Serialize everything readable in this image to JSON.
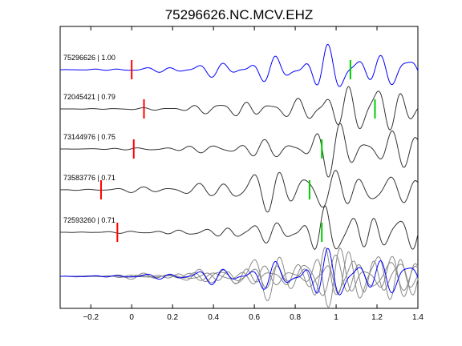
{
  "chart_data": {
    "type": "line",
    "title": "75296626.NC.MCV.EHZ",
    "xlabel": "",
    "ylabel": "",
    "xlim": [
      -0.35,
      1.4
    ],
    "xticks": [
      -0.2,
      0,
      0.2,
      0.4,
      0.6,
      0.8,
      1,
      1.2,
      1.4
    ],
    "xtick_labels": [
      "−0.2",
      "0",
      "0.2",
      "0.4",
      "0.6",
      "0.8",
      "1",
      "1.2",
      "1.4"
    ],
    "grid": false,
    "colors": {
      "reference": "#0000ff",
      "trace": "#333333",
      "stack_trace": "#888888",
      "p_pick": "#ff0000",
      "s_pick": "#00cc00"
    },
    "traces": [
      {
        "label": "75296626 | 1.00",
        "is_reference": true,
        "p_pick": 0.0,
        "s_pick": 1.07,
        "amp": 1.0,
        "signal": [
          [
            -0.35,
            0.0
          ],
          [
            0.0,
            0.07
          ],
          [
            0.1,
            0.12
          ],
          [
            0.2,
            0.2
          ],
          [
            0.3,
            0.28
          ],
          [
            0.4,
            0.38
          ],
          [
            0.5,
            0.5
          ],
          [
            0.6,
            0.6
          ],
          [
            0.7,
            0.7
          ],
          [
            0.8,
            0.6
          ],
          [
            0.85,
            1.0
          ],
          [
            0.9,
            1.15
          ],
          [
            0.95,
            1.3
          ],
          [
            1.0,
            1.2
          ],
          [
            1.1,
            1.0
          ],
          [
            1.2,
            0.9
          ],
          [
            1.3,
            0.85
          ],
          [
            1.4,
            0.8
          ]
        ],
        "components": [
          [
            7.8,
            0.0,
            1.0
          ],
          [
            11.5,
            1.3,
            0.5
          ],
          [
            4.6,
            2.0,
            0.35
          ]
        ]
      },
      {
        "label": "72045421 | 0.79",
        "is_reference": false,
        "p_pick": 0.06,
        "s_pick": 1.19,
        "amp": 1.0,
        "signal": [
          [
            -0.35,
            0.0
          ],
          [
            0.0,
            0.05
          ],
          [
            0.2,
            0.1
          ],
          [
            0.3,
            0.22
          ],
          [
            0.5,
            0.45
          ],
          [
            0.6,
            0.5
          ],
          [
            0.7,
            0.45
          ],
          [
            0.8,
            0.5
          ],
          [
            0.85,
            0.7
          ],
          [
            0.9,
            1.05
          ],
          [
            0.95,
            1.45
          ],
          [
            1.0,
            1.4
          ],
          [
            1.1,
            1.35
          ],
          [
            1.2,
            1.45
          ],
          [
            1.3,
            1.25
          ],
          [
            1.4,
            1.1
          ]
        ],
        "components": [
          [
            7.9,
            0.4,
            1.0
          ],
          [
            12.0,
            2.1,
            0.45
          ],
          [
            5.2,
            0.9,
            0.3
          ]
        ]
      },
      {
        "label": "73144976 | 0.75",
        "is_reference": false,
        "p_pick": 0.01,
        "s_pick": 0.93,
        "amp": 1.0,
        "signal": [
          [
            -0.35,
            0.0
          ],
          [
            0.0,
            0.06
          ],
          [
            0.2,
            0.12
          ],
          [
            0.4,
            0.25
          ],
          [
            0.5,
            0.4
          ],
          [
            0.6,
            0.48
          ],
          [
            0.7,
            0.5
          ],
          [
            0.8,
            0.55
          ],
          [
            0.9,
            1.25
          ],
          [
            0.95,
            1.5
          ],
          [
            1.0,
            1.45
          ],
          [
            1.1,
            1.4
          ],
          [
            1.2,
            1.2
          ],
          [
            1.3,
            1.0
          ],
          [
            1.4,
            0.9
          ]
        ],
        "components": [
          [
            8.1,
            0.8,
            1.0
          ],
          [
            11.0,
            1.7,
            0.45
          ],
          [
            4.9,
            2.6,
            0.3
          ]
        ]
      },
      {
        "label": "73583776 | 0.71",
        "is_reference": false,
        "p_pick": -0.15,
        "s_pick": 0.87,
        "amp": 1.0,
        "signal": [
          [
            -0.35,
            0.0
          ],
          [
            -0.15,
            0.08
          ],
          [
            0.0,
            0.15
          ],
          [
            0.2,
            0.25
          ],
          [
            0.4,
            0.4
          ],
          [
            0.5,
            0.95
          ],
          [
            0.6,
            1.15
          ],
          [
            0.7,
            1.3
          ],
          [
            0.8,
            1.2
          ],
          [
            0.9,
            1.3
          ],
          [
            1.0,
            1.15
          ],
          [
            1.1,
            1.05
          ],
          [
            1.2,
            0.95
          ],
          [
            1.3,
            0.85
          ],
          [
            1.4,
            0.75
          ]
        ],
        "components": [
          [
            7.5,
            1.2,
            1.0
          ],
          [
            10.5,
            0.3,
            0.4
          ],
          [
            4.3,
            1.9,
            0.3
          ]
        ]
      },
      {
        "label": "72593260 | 0.71",
        "is_reference": false,
        "p_pick": -0.07,
        "s_pick": 0.93,
        "amp": 1.0,
        "signal": [
          [
            -0.35,
            0.0
          ],
          [
            0.0,
            0.07
          ],
          [
            0.2,
            0.12
          ],
          [
            0.4,
            0.22
          ],
          [
            0.5,
            0.45
          ],
          [
            0.6,
            0.55
          ],
          [
            0.7,
            0.6
          ],
          [
            0.8,
            0.75
          ],
          [
            0.9,
            1.25
          ],
          [
            0.95,
            1.5
          ],
          [
            1.0,
            1.35
          ],
          [
            1.1,
            1.2
          ],
          [
            1.2,
            1.1
          ],
          [
            1.3,
            1.0
          ],
          [
            1.4,
            0.95
          ]
        ],
        "components": [
          [
            8.4,
            2.0,
            1.0
          ],
          [
            12.5,
            0.7,
            0.4
          ],
          [
            5.5,
            1.3,
            0.3
          ]
        ]
      }
    ]
  }
}
